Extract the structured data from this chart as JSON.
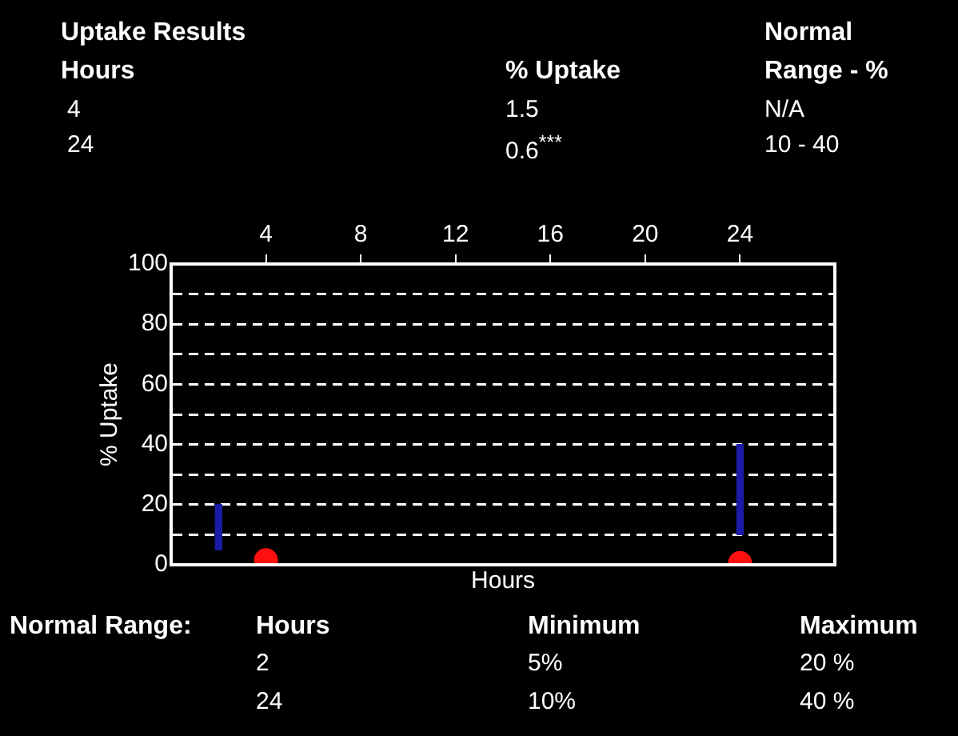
{
  "chart_data": {
    "type": "scatter",
    "title": "Uptake Results",
    "xlabel": "Hours",
    "ylabel": "% Uptake",
    "xlim": [
      0,
      28
    ],
    "xticks": [
      4,
      8,
      12,
      16,
      20,
      24
    ],
    "ylim": [
      0,
      100
    ],
    "yticks": [
      0,
      {
        "value": 10,
        "label": null
      },
      20,
      {
        "value": 30,
        "label": null
      },
      40,
      {
        "value": 50,
        "label": null
      },
      60,
      {
        "value": 70,
        "label": null
      },
      80,
      {
        "value": 90,
        "label": null
      },
      100
    ],
    "grid": "y",
    "legend": false,
    "marker": "circle",
    "series": [
      {
        "type": "bar",
        "color": "#1a1aa8",
        "x": [
          2,
          24
        ],
        "base": [
          5,
          10
        ],
        "values": [
          15,
          30
        ]
      },
      {
        "color": "#ff1010",
        "x": [
          4,
          24
        ],
        "values": [
          1.5,
          0.6
        ]
      }
    ],
    "annotations": [
      "Hours",
      "% Uptake",
      "Normal",
      "Range - %",
      "4",
      "1.5",
      "N/A",
      "24",
      "0.6$^{***}$",
      "10 - 40",
      "Normal Range:",
      "Hours",
      "Minimum",
      "Maximum",
      "2",
      "5%",
      "20 %",
      "24",
      "10%",
      "40 %"
    ]
  }
}
